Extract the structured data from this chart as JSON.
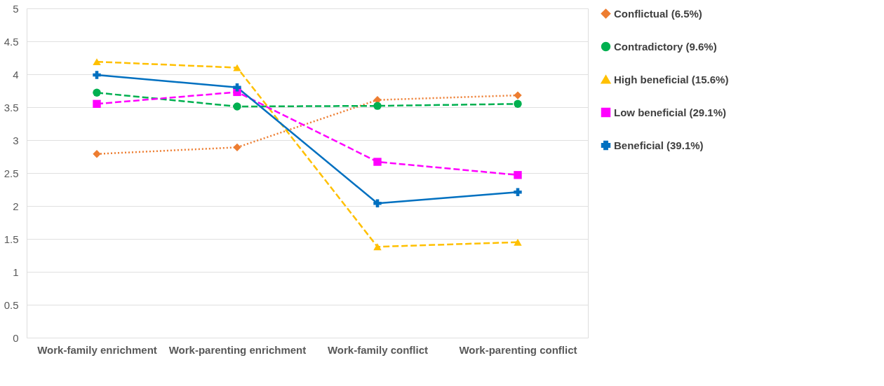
{
  "chart_data": {
    "type": "line",
    "categories": [
      "Work-family enrichment",
      "Work-parenting enrichment",
      "Work-family conflict",
      "Work-parenting conflict"
    ],
    "series": [
      {
        "name": "Conflictual (6.5%)",
        "color": "#ed7d31",
        "line_style": "dotted",
        "marker": "diamond",
        "values": [
          2.79,
          2.89,
          3.61,
          3.68
        ]
      },
      {
        "name": "Contradictory (9.6%)",
        "color": "#00b050",
        "line_style": "dashed",
        "marker": "circle",
        "values": [
          3.72,
          3.51,
          3.52,
          3.55
        ]
      },
      {
        "name": "High beneficial (15.6%)",
        "color": "#ffc000",
        "line_style": "dashed",
        "marker": "triangle",
        "values": [
          4.19,
          4.1,
          1.38,
          1.45
        ]
      },
      {
        "name": "Low beneficial (29.1%)",
        "color": "#ff00ff",
        "line_style": "dashed",
        "marker": "square",
        "values": [
          3.55,
          3.73,
          2.67,
          2.47
        ]
      },
      {
        "name": "Beneficial (39.1%)",
        "color": "#0070c0",
        "line_style": "solid",
        "marker": "cross",
        "values": [
          3.99,
          3.8,
          2.04,
          2.21
        ]
      }
    ],
    "ylim": [
      0,
      5
    ],
    "yticks": [
      0,
      0.5,
      1,
      1.5,
      2,
      2.5,
      3,
      3.5,
      4,
      4.5,
      5
    ],
    "grid": "y",
    "legend": "right"
  }
}
